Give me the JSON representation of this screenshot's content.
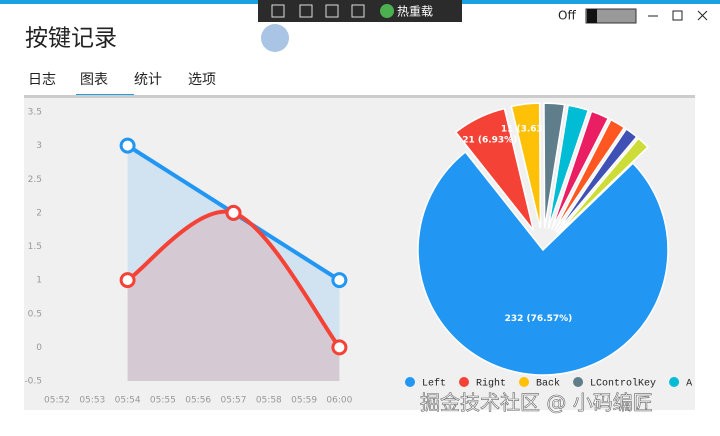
{
  "window": {
    "title": "按键记录",
    "toggle_label": "Off",
    "hot_reload": "热重载",
    "tabs": [
      "日志",
      "图表",
      "统计",
      "选项"
    ],
    "selected_tab": 1
  },
  "watermark": "掘金技术社区 @ 小码编匠",
  "chart_data": [
    {
      "type": "line",
      "categories": [
        "05:52",
        "05:53",
        "05:54",
        "05:55",
        "05:56",
        "05:57",
        "05:58",
        "05:59",
        "06:00"
      ],
      "ylim": [
        -0.5,
        3.5
      ],
      "yticks": [
        -0.5,
        0,
        0.5,
        1,
        1.5,
        2,
        2.5,
        3,
        3.5
      ],
      "series": [
        {
          "color": "#2196f3",
          "x": [
            "05:54",
            "05:57",
            "06:00"
          ],
          "values": [
            3,
            2,
            1
          ]
        },
        {
          "color": "#f44336",
          "x": [
            "05:54",
            "05:57",
            "06:00"
          ],
          "values": [
            1,
            2,
            0
          ]
        }
      ]
    },
    {
      "type": "pie",
      "categories": [
        "Left",
        "Right",
        "Back",
        "LControlKey",
        "A",
        null,
        null,
        null,
        null
      ],
      "values": [
        232,
        21,
        11,
        8,
        8,
        7,
        6,
        5,
        5
      ],
      "value_labels": [
        "232 (76.57%)",
        "21 (6.93%)",
        "11 (3.63%)",
        null,
        null,
        null,
        null,
        null,
        null
      ],
      "colors": [
        "#2196f3",
        "#f44336",
        "#ffc107",
        "#607d8b",
        "#00bcd4",
        "#e91e63",
        "#ff5722",
        "#3f51b5",
        "#cddc39"
      ]
    }
  ]
}
